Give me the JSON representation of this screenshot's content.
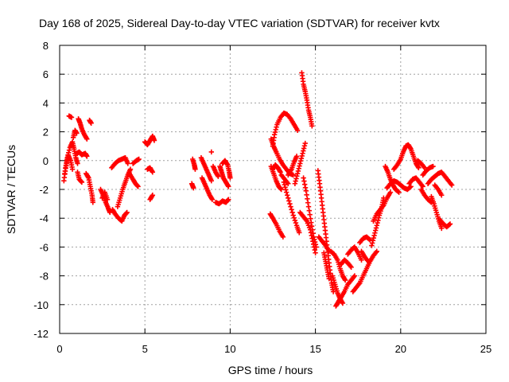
{
  "chart_data": {
    "type": "scatter",
    "title": "Day 168 of 2025, Sidereal Day-to-day VTEC variation (SDTVAR) for receiver kvtx",
    "xlabel": "GPS time / hours",
    "ylabel": "SDTVAR / TECUs",
    "xlim": [
      0,
      25
    ],
    "ylim": [
      -12,
      8
    ],
    "xticks": [
      "0",
      "5",
      "10",
      "15",
      "20",
      "25"
    ],
    "yticks": [
      "-12",
      "-10",
      "-8",
      "-6",
      "-4",
      "-2",
      "0",
      "2",
      "4",
      "6",
      "8"
    ],
    "xtick_values": [
      0,
      5,
      10,
      15,
      20,
      25
    ],
    "ytick_values": [
      -12,
      -10,
      -8,
      -6,
      -4,
      -2,
      0,
      2,
      4,
      6,
      8
    ],
    "grid": true,
    "marker": "plus",
    "color": "#ff0000",
    "segments": [
      [
        [
          0.25,
          -1.4
        ],
        [
          0.35,
          -0.5
        ],
        [
          0.45,
          0.2
        ],
        [
          0.6,
          0.9
        ],
        [
          0.75,
          1.3
        ],
        [
          0.85,
          0.8
        ],
        [
          0.95,
          0.2
        ],
        [
          1.05,
          -0.2
        ]
      ],
      [
        [
          0.3,
          -0.9
        ],
        [
          0.4,
          -0.2
        ],
        [
          0.5,
          0.4
        ],
        [
          0.65,
          0.0
        ],
        [
          0.75,
          -0.6
        ]
      ],
      [
        [
          0.55,
          3.1
        ],
        [
          0.7,
          3.0
        ]
      ],
      [
        [
          0.8,
          1.6
        ],
        [
          0.9,
          2.1
        ],
        [
          1.0,
          1.9
        ]
      ],
      [
        [
          1.05,
          -0.8
        ],
        [
          1.15,
          -1.3
        ],
        [
          1.3,
          -1.5
        ]
      ],
      [
        [
          1.0,
          0.5
        ],
        [
          1.15,
          0.6
        ],
        [
          1.3,
          0.4
        ],
        [
          1.5,
          0.5
        ],
        [
          1.6,
          0.3
        ]
      ],
      [
        [
          1.1,
          2.9
        ],
        [
          1.2,
          2.6
        ],
        [
          1.3,
          2.2
        ],
        [
          1.45,
          1.8
        ],
        [
          1.6,
          1.5
        ]
      ],
      [
        [
          1.75,
          2.8
        ],
        [
          1.85,
          2.6
        ]
      ],
      [
        [
          1.55,
          -0.9
        ],
        [
          1.7,
          -1.2
        ],
        [
          1.8,
          -1.8
        ],
        [
          1.9,
          -2.4
        ],
        [
          1.95,
          -2.9
        ]
      ],
      [
        [
          2.4,
          -2.0
        ],
        [
          2.55,
          -2.4
        ],
        [
          2.7,
          -2.9
        ],
        [
          2.85,
          -3.3
        ],
        [
          2.95,
          -3.6
        ]
      ],
      [
        [
          2.5,
          -2.6
        ],
        [
          2.65,
          -2.2
        ],
        [
          2.8,
          -2.7
        ]
      ],
      [
        [
          3.05,
          -0.5
        ],
        [
          3.25,
          -0.2
        ],
        [
          3.45,
          0.0
        ],
        [
          3.65,
          0.1
        ],
        [
          3.85,
          0.2
        ],
        [
          4.0,
          -0.2
        ]
      ],
      [
        [
          3.1,
          -3.4
        ],
        [
          3.25,
          -3.7
        ],
        [
          3.45,
          -4.0
        ],
        [
          3.65,
          -4.2
        ],
        [
          3.8,
          -3.8
        ],
        [
          3.95,
          -3.6
        ]
      ],
      [
        [
          3.4,
          -3.2
        ],
        [
          3.55,
          -2.6
        ],
        [
          3.7,
          -2.0
        ],
        [
          3.85,
          -1.5
        ],
        [
          4.0,
          -1.0
        ],
        [
          4.15,
          -0.6
        ]
      ],
      [
        [
          4.1,
          -0.9
        ],
        [
          4.3,
          -1.3
        ],
        [
          4.45,
          -1.6
        ],
        [
          4.6,
          -1.8
        ]
      ],
      [
        [
          4.3,
          -0.2
        ],
        [
          4.5,
          0.0
        ],
        [
          4.65,
          0.1
        ]
      ],
      [
        [
          5.15,
          -0.6
        ],
        [
          5.3,
          -0.5
        ],
        [
          5.45,
          -0.8
        ]
      ],
      [
        [
          5.0,
          1.3
        ],
        [
          5.15,
          1.1
        ],
        [
          5.3,
          1.4
        ],
        [
          5.45,
          1.7
        ],
        [
          5.55,
          1.4
        ]
      ],
      [
        [
          5.3,
          -2.7
        ],
        [
          5.45,
          -2.4
        ]
      ],
      [
        [
          7.75,
          -1.6
        ],
        [
          7.85,
          -1.9
        ]
      ],
      [
        [
          7.8,
          0.1
        ],
        [
          7.9,
          -0.3
        ],
        [
          7.95,
          -0.6
        ]
      ],
      [
        [
          8.3,
          0.2
        ],
        [
          8.45,
          -0.2
        ],
        [
          8.6,
          -0.6
        ],
        [
          8.75,
          -1.0
        ],
        [
          8.9,
          -1.4
        ]
      ],
      [
        [
          8.35,
          -1.2
        ],
        [
          8.5,
          -1.6
        ],
        [
          8.65,
          -2.0
        ],
        [
          8.8,
          -2.4
        ],
        [
          8.95,
          -2.7
        ]
      ],
      [
        [
          8.9,
          0.6
        ]
      ],
      [
        [
          9.0,
          -0.4
        ],
        [
          9.15,
          -0.8
        ],
        [
          9.3,
          -1.1
        ]
      ],
      [
        [
          9.15,
          -2.9
        ],
        [
          9.35,
          -3.0
        ],
        [
          9.55,
          -2.8
        ],
        [
          9.75,
          -2.9
        ],
        [
          9.9,
          -2.7
        ]
      ],
      [
        [
          9.4,
          -0.4
        ],
        [
          9.5,
          -0.8
        ],
        [
          9.6,
          -1.2
        ],
        [
          9.75,
          -1.5
        ],
        [
          9.9,
          -1.8
        ]
      ],
      [
        [
          9.55,
          -0.2
        ],
        [
          9.7,
          0.0
        ],
        [
          9.85,
          -0.3
        ],
        [
          9.95,
          -0.8
        ],
        [
          10.0,
          -1.2
        ]
      ],
      [
        [
          12.35,
          -3.7
        ],
        [
          12.5,
          -4.0
        ],
        [
          12.7,
          -4.4
        ],
        [
          12.9,
          -4.9
        ],
        [
          13.1,
          -5.3
        ]
      ],
      [
        [
          12.4,
          1.5
        ],
        [
          12.55,
          1.0
        ],
        [
          12.7,
          0.6
        ],
        [
          12.9,
          0.1
        ],
        [
          13.1,
          -0.3
        ],
        [
          13.3,
          -0.6
        ],
        [
          13.5,
          -0.9
        ],
        [
          13.7,
          -1.0
        ]
      ],
      [
        [
          12.4,
          -0.4
        ],
        [
          12.55,
          -0.9
        ],
        [
          12.7,
          -1.4
        ],
        [
          12.85,
          -1.8
        ],
        [
          13.0,
          -2.0
        ]
      ],
      [
        [
          12.5,
          -0.6
        ],
        [
          12.65,
          -0.3
        ],
        [
          12.8,
          -0.5
        ],
        [
          12.95,
          -0.8
        ]
      ],
      [
        [
          12.5,
          1.0
        ],
        [
          12.6,
          1.8
        ],
        [
          12.75,
          2.5
        ],
        [
          12.95,
          3.0
        ],
        [
          13.15,
          3.3
        ],
        [
          13.35,
          3.2
        ],
        [
          13.55,
          2.9
        ],
        [
          13.75,
          2.5
        ],
        [
          13.95,
          2.1
        ]
      ],
      [
        [
          13.0,
          -1.0
        ],
        [
          13.2,
          -1.3
        ],
        [
          13.4,
          -1.6
        ]
      ],
      [
        [
          13.15,
          -1.5
        ],
        [
          13.3,
          -2.2
        ],
        [
          13.5,
          -3.0
        ],
        [
          13.7,
          -3.8
        ],
        [
          13.9,
          -4.5
        ],
        [
          14.05,
          -5.0
        ]
      ],
      [
        [
          13.4,
          -1.0
        ],
        [
          13.6,
          -0.6
        ],
        [
          13.75,
          -0.1
        ],
        [
          13.9,
          0.3
        ]
      ],
      [
        [
          13.8,
          -1.6
        ],
        [
          13.95,
          -0.9
        ],
        [
          14.1,
          -0.2
        ],
        [
          14.25,
          0.5
        ],
        [
          14.4,
          1.2
        ]
      ],
      [
        [
          14.1,
          -3.6
        ],
        [
          14.3,
          -3.9
        ],
        [
          14.5,
          -4.2
        ],
        [
          14.7,
          -4.8
        ],
        [
          14.85,
          -5.6
        ],
        [
          15.0,
          -6.4
        ]
      ],
      [
        [
          14.2,
          6.1
        ],
        [
          14.3,
          5.3
        ],
        [
          14.4,
          4.8
        ],
        [
          14.5,
          4.2
        ],
        [
          14.6,
          3.5
        ],
        [
          14.7,
          3.0
        ],
        [
          14.8,
          2.4
        ]
      ],
      [
        [
          14.3,
          -1.2
        ],
        [
          14.45,
          -2.1
        ],
        [
          14.6,
          -3.2
        ],
        [
          14.75,
          -4.3
        ],
        [
          14.9,
          -5.3
        ],
        [
          15.05,
          -6.0
        ]
      ],
      [
        [
          15.15,
          -0.7
        ],
        [
          15.25,
          -1.6
        ],
        [
          15.35,
          -2.6
        ],
        [
          15.45,
          -3.6
        ],
        [
          15.55,
          -4.6
        ],
        [
          15.65,
          -5.6
        ],
        [
          15.75,
          -6.6
        ],
        [
          15.85,
          -7.6
        ],
        [
          15.95,
          -8.5
        ],
        [
          16.05,
          -9.1
        ]
      ],
      [
        [
          15.2,
          -5.3
        ],
        [
          15.4,
          -5.6
        ],
        [
          15.6,
          -5.9
        ],
        [
          15.8,
          -6.3
        ]
      ],
      [
        [
          15.5,
          -6.4
        ],
        [
          15.6,
          -7.0
        ],
        [
          15.7,
          -7.6
        ],
        [
          15.8,
          -8.2
        ]
      ],
      [
        [
          15.9,
          -6.3
        ],
        [
          16.1,
          -6.5
        ],
        [
          16.3,
          -6.9
        ],
        [
          16.45,
          -7.5
        ],
        [
          16.6,
          -8.0
        ],
        [
          16.75,
          -8.3
        ]
      ],
      [
        [
          16.0,
          -8.0
        ],
        [
          16.15,
          -8.6
        ],
        [
          16.3,
          -9.2
        ],
        [
          16.45,
          -9.6
        ],
        [
          16.6,
          -9.9
        ]
      ],
      [
        [
          16.2,
          -10.1
        ],
        [
          16.35,
          -9.8
        ],
        [
          16.5,
          -9.5
        ],
        [
          16.7,
          -9.1
        ],
        [
          16.9,
          -8.6
        ],
        [
          17.1,
          -8.3
        ],
        [
          17.3,
          -8.0
        ]
      ],
      [
        [
          16.5,
          -7.2
        ],
        [
          16.7,
          -6.9
        ],
        [
          16.9,
          -7.1
        ],
        [
          17.1,
          -7.4
        ]
      ],
      [
        [
          16.9,
          -6.5
        ],
        [
          17.1,
          -6.2
        ],
        [
          17.3,
          -6.0
        ],
        [
          17.5,
          -6.4
        ],
        [
          17.7,
          -6.9
        ]
      ],
      [
        [
          17.2,
          -9.1
        ],
        [
          17.4,
          -8.8
        ],
        [
          17.6,
          -8.5
        ],
        [
          17.8,
          -8.0
        ],
        [
          18.0,
          -7.5
        ],
        [
          18.2,
          -7.0
        ],
        [
          18.4,
          -6.6
        ],
        [
          18.6,
          -6.3
        ]
      ],
      [
        [
          17.6,
          -5.7
        ],
        [
          17.8,
          -5.4
        ],
        [
          18.0,
          -5.3
        ],
        [
          18.2,
          -5.5
        ]
      ],
      [
        [
          17.7,
          -6.3
        ],
        [
          17.9,
          -6.7
        ],
        [
          18.1,
          -7.0
        ]
      ],
      [
        [
          18.3,
          -5.9
        ],
        [
          18.45,
          -5.2
        ],
        [
          18.6,
          -4.5
        ],
        [
          18.75,
          -3.8
        ],
        [
          18.9,
          -3.2
        ],
        [
          19.0,
          -2.6
        ]
      ],
      [
        [
          18.4,
          -4.2
        ],
        [
          18.6,
          -3.7
        ],
        [
          18.8,
          -3.4
        ],
        [
          19.0,
          -3.1
        ],
        [
          19.2,
          -2.6
        ],
        [
          19.4,
          -2.2
        ]
      ],
      [
        [
          19.1,
          -0.4
        ],
        [
          19.25,
          -0.8
        ],
        [
          19.4,
          -1.3
        ],
        [
          19.55,
          -1.7
        ],
        [
          19.7,
          -2.0
        ],
        [
          19.9,
          -2.2
        ]
      ],
      [
        [
          19.2,
          -1.9
        ],
        [
          19.4,
          -1.6
        ],
        [
          19.6,
          -1.4
        ],
        [
          19.8,
          -1.5
        ],
        [
          20.0,
          -1.7
        ],
        [
          20.2,
          -1.9
        ],
        [
          20.4,
          -2.0
        ],
        [
          20.6,
          -1.8
        ]
      ],
      [
        [
          19.6,
          -0.6
        ],
        [
          19.8,
          -0.3
        ],
        [
          20.0,
          0.1
        ],
        [
          20.15,
          0.6
        ],
        [
          20.3,
          1.0
        ],
        [
          20.45,
          1.1
        ],
        [
          20.6,
          0.8
        ],
        [
          20.75,
          0.3
        ],
        [
          20.9,
          -0.2
        ],
        [
          21.05,
          -0.5
        ]
      ],
      [
        [
          20.5,
          -1.6
        ],
        [
          20.7,
          -1.3
        ],
        [
          20.9,
          -1.2
        ],
        [
          21.1,
          -1.5
        ],
        [
          21.3,
          -1.8
        ]
      ],
      [
        [
          21.0,
          0.0
        ],
        [
          21.2,
          -0.2
        ],
        [
          21.4,
          -0.5
        ]
      ],
      [
        [
          21.2,
          -2.0
        ],
        [
          21.4,
          -2.4
        ],
        [
          21.6,
          -2.7
        ],
        [
          21.8,
          -2.9
        ]
      ],
      [
        [
          21.3,
          -1.0
        ],
        [
          21.5,
          -0.7
        ],
        [
          21.7,
          -0.5
        ],
        [
          21.9,
          -0.4
        ]
      ],
      [
        [
          21.6,
          -1.6
        ],
        [
          21.8,
          -1.3
        ],
        [
          22.0,
          -1.1
        ],
        [
          22.2,
          -0.9
        ],
        [
          22.4,
          -0.8
        ],
        [
          22.6,
          -1.1
        ],
        [
          22.8,
          -1.4
        ],
        [
          23.0,
          -1.7
        ]
      ],
      [
        [
          21.8,
          -2.5
        ],
        [
          21.95,
          -3.0
        ],
        [
          22.1,
          -3.6
        ],
        [
          22.25,
          -4.2
        ],
        [
          22.4,
          -4.7
        ]
      ],
      [
        [
          22.0,
          -1.7
        ],
        [
          22.2,
          -2.0
        ],
        [
          22.4,
          -2.4
        ]
      ],
      [
        [
          22.3,
          -4.1
        ],
        [
          22.5,
          -4.4
        ],
        [
          22.7,
          -4.6
        ],
        [
          22.9,
          -4.4
        ]
      ]
    ]
  }
}
